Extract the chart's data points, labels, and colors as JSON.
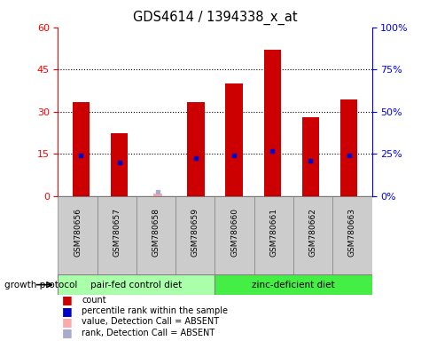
{
  "title": "GDS4614 / 1394338_x_at",
  "samples": [
    "GSM780656",
    "GSM780657",
    "GSM780658",
    "GSM780659",
    "GSM780660",
    "GSM780661",
    "GSM780662",
    "GSM780663"
  ],
  "count_values": [
    33.5,
    22.5,
    null,
    33.5,
    40.0,
    52.0,
    28.0,
    34.5
  ],
  "rank_values": [
    14.5,
    12.0,
    null,
    13.5,
    14.5,
    16.0,
    12.5,
    14.5
  ],
  "absent_value_idx": 2,
  "absent_value_val": 1.0,
  "absent_rank_val": 1.5,
  "ylim_left": [
    0,
    60
  ],
  "ylim_right": [
    0,
    100
  ],
  "yticks_left": [
    0,
    15,
    30,
    45,
    60
  ],
  "yticks_right": [
    0,
    25,
    50,
    75,
    100
  ],
  "yticklabels_right": [
    "0%",
    "25%",
    "50%",
    "75%",
    "100%"
  ],
  "bar_color": "#cc0000",
  "rank_color": "#0000cc",
  "absent_value_color": "#ffaaaa",
  "absent_rank_color": "#aaaacc",
  "groups": [
    {
      "label": "pair-fed control diet",
      "color": "#aaffaa",
      "start": 0,
      "end": 3
    },
    {
      "label": "zinc-deficient diet",
      "color": "#44ee44",
      "start": 4,
      "end": 7
    }
  ],
  "group_label": "growth protocol",
  "dotted_yticks": [
    15,
    30,
    45
  ],
  "bar_width": 0.45,
  "legend_items": [
    {
      "color": "#cc0000",
      "label": "count"
    },
    {
      "color": "#0000cc",
      "label": "percentile rank within the sample"
    },
    {
      "color": "#ffaaaa",
      "label": "value, Detection Call = ABSENT"
    },
    {
      "color": "#aaaacc",
      "label": "rank, Detection Call = ABSENT"
    }
  ]
}
